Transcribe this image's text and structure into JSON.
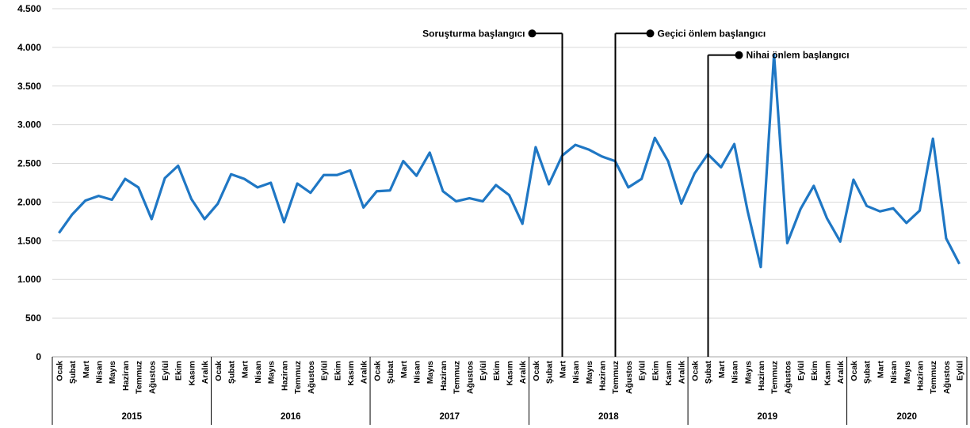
{
  "chart_data": {
    "type": "line",
    "title": "",
    "xlabel": "",
    "ylabel": "",
    "ylim": [
      0,
      4500
    ],
    "y_ticks": [
      0,
      500,
      1000,
      1500,
      2000,
      2500,
      3000,
      3500,
      4000,
      4500
    ],
    "y_tick_labels": [
      "0",
      "500",
      "1.000",
      "1.500",
      "2.000",
      "2.500",
      "3.000",
      "3.500",
      "4.000",
      "4.500"
    ],
    "grid": "horizontal",
    "line_color": "#1f77c4",
    "months": [
      "Ocak",
      "Şubat",
      "Mart",
      "Nisan",
      "Mayıs",
      "Haziran",
      "Temmuz",
      "Ağustos",
      "Eylül",
      "Ekim",
      "Kasım",
      "Aralık"
    ],
    "years": [
      {
        "label": "2015",
        "months": 12
      },
      {
        "label": "2016",
        "months": 12
      },
      {
        "label": "2017",
        "months": 12
      },
      {
        "label": "2018",
        "months": 12
      },
      {
        "label": "2019",
        "months": 12
      },
      {
        "label": "2020",
        "months": 9
      }
    ],
    "series": [
      {
        "values": [
          1600,
          1840,
          2020,
          2080,
          2030,
          2300,
          2190,
          1780,
          2310,
          2470,
          2040,
          1780,
          1980,
          2360,
          2300,
          2190,
          2250,
          1740,
          2240,
          2120,
          2350,
          2350,
          2410,
          1930,
          2140,
          2150,
          2530,
          2340,
          2640,
          2140,
          2010,
          2050,
          2010,
          2220,
          2090,
          1720,
          2710,
          2230,
          2600,
          2740,
          2680,
          2590,
          2530,
          2190,
          2300,
          2830,
          2530,
          1980,
          2370,
          2620,
          2450,
          2750,
          1890,
          1160,
          3910,
          1470,
          1910,
          2210,
          1790,
          1490,
          2290,
          1950,
          1880,
          1920,
          1730,
          1890,
          2820,
          1530,
          1200
        ]
      }
    ],
    "annotations": [
      {
        "label": "Soruşturma başlangıcı",
        "year": "2018",
        "month": "Mart",
        "marker_y": 4180
      },
      {
        "label": "Geçici önlem başlangıcı",
        "year": "2018",
        "month": "Temmuz",
        "marker_y": 4180
      },
      {
        "label": "Nihai önlem başlangıcı",
        "year": "2019",
        "month": "Şubat",
        "marker_y": 3900
      }
    ]
  }
}
